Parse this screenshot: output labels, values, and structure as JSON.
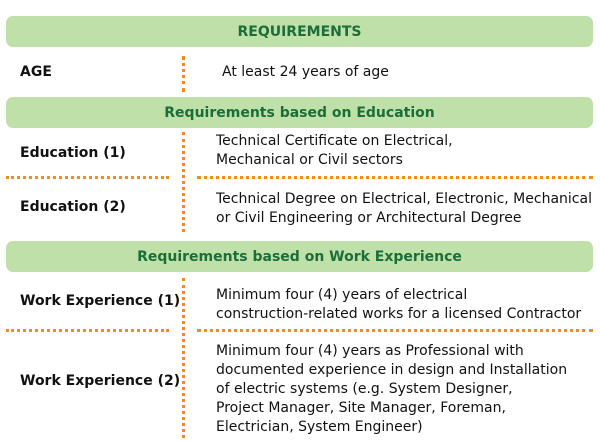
{
  "header": {
    "title": "REQUIREMENTS"
  },
  "age": {
    "label": "AGE",
    "value": "At least 24 years of age"
  },
  "education_section": {
    "title": "Requirements based on Education",
    "rows": [
      {
        "label": "Education (1)",
        "lines": [
          "Technical Certificate on Electrical,",
          "Mechanical or Civil sectors"
        ]
      },
      {
        "label": "Education (2)",
        "lines": [
          "Technical Degree on Electrical, Electronic, Mechanical",
          "or Civil Engineering or Architectural Degree"
        ]
      }
    ]
  },
  "experience_section": {
    "title": "Requirements based on Work Experience",
    "rows": [
      {
        "label": "Work Experience (1)",
        "lines": [
          "Minimum four (4) years of electrical",
          "construction-related works for a licensed Contractor"
        ]
      },
      {
        "label": "Work Experience (2)",
        "lines": [
          "Minimum four (4) years as Professional with",
          "documented experience in design and Installation",
          "of electric systems (e.g. System Designer,",
          "Project Manager, Site Manager, Foreman,",
          "Electrician, System Engineer)"
        ]
      }
    ]
  },
  "colors": {
    "band": "#bfe0a8",
    "band_text": "#1a6e3a",
    "divider": "#f28c1c"
  }
}
